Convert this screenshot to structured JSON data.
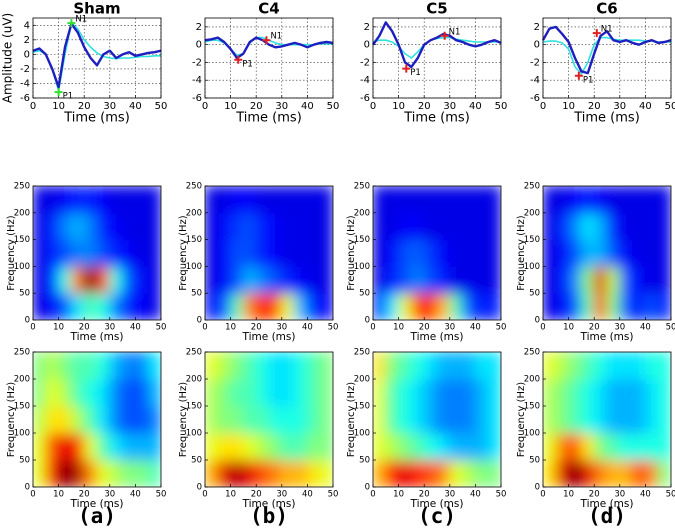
{
  "panel_labels": [
    "(a)",
    "(b)",
    "(c)",
    "(d)"
  ],
  "chart_data": [
    {
      "type": "line",
      "title": "Sham",
      "xlabel": "Time (ms)",
      "ylabel": "Amplitude (uV)",
      "grid": true,
      "x": [
        0,
        2.5,
        5,
        7.5,
        10,
        12.5,
        15,
        17.5,
        20,
        22.5,
        25,
        27.5,
        30,
        32.5,
        35,
        37.5,
        40,
        42.5,
        45,
        47.5,
        50
      ],
      "series": [
        {
          "color": "#1f1fc0",
          "values": [
            0.5,
            0.8,
            0,
            -2,
            -4.5,
            1,
            4.2,
            3,
            1,
            -0.5,
            -1.5,
            0,
            0.5,
            -0.5,
            0,
            0.3,
            -0.2,
            0,
            0.2,
            0.3,
            0.5
          ]
        },
        {
          "color": "#33e0e0",
          "values": [
            0.3,
            0.5,
            0,
            -2,
            -5,
            0,
            4.3,
            3.5,
            2,
            1,
            0.2,
            -0.3,
            -0.5,
            -0.6,
            -0.5,
            -0.5,
            -0.4,
            -0.3,
            -0.3,
            -0.2,
            -0.2
          ]
        }
      ],
      "annotations": [
        {
          "text": "N1",
          "x": 15,
          "y": 4.3,
          "color": "#30e030"
        },
        {
          "text": "P1",
          "x": 10,
          "y": -5.2,
          "color": "#30e030"
        }
      ],
      "xlim": [
        0,
        50
      ],
      "xticks": [
        0,
        10,
        20,
        30,
        40,
        50
      ],
      "ylim": [
        -6,
        5
      ],
      "yticks": [
        -6,
        -4,
        -2,
        0,
        2,
        4
      ]
    },
    {
      "type": "line",
      "title": "C4",
      "xlabel": "Time (ms)",
      "grid": true,
      "x": [
        0,
        2.5,
        5,
        7.5,
        10,
        12.5,
        15,
        17.5,
        20,
        22.5,
        25,
        27.5,
        30,
        32.5,
        35,
        37.5,
        40,
        42.5,
        45,
        47.5,
        50
      ],
      "series": [
        {
          "color": "#1f1fc0",
          "values": [
            0.5,
            0.6,
            0.8,
            0.3,
            -0.5,
            -1.5,
            -1,
            0.3,
            0.8,
            0.5,
            0,
            -0.3,
            -0.2,
            0,
            0.2,
            0,
            -0.3,
            0,
            0.2,
            0.3,
            0.2
          ]
        },
        {
          "color": "#33e0e0",
          "values": [
            0.3,
            0.5,
            0.5,
            0.2,
            -0.5,
            -1.2,
            -1,
            0.2,
            0.8,
            0.8,
            0.5,
            0.2,
            0,
            0,
            0,
            0,
            0,
            0,
            0.1,
            0.1,
            0.1
          ]
        }
      ],
      "annotations": [
        {
          "text": "N1",
          "x": 24,
          "y": 0.5,
          "color": "#e02020"
        },
        {
          "text": "P1",
          "x": 13,
          "y": -1.7,
          "color": "#e02020"
        }
      ],
      "xlim": [
        0,
        50
      ],
      "xticks": [
        0,
        10,
        20,
        30,
        40,
        50
      ],
      "ylim": [
        -6,
        3
      ],
      "yticks": [
        -6,
        -4,
        -2,
        0,
        2
      ]
    },
    {
      "type": "line",
      "title": "C5",
      "xlabel": "Time (ms)",
      "grid": true,
      "x": [
        0,
        2.5,
        5,
        7.5,
        10,
        12.5,
        15,
        17.5,
        20,
        22.5,
        25,
        27.5,
        30,
        32.5,
        35,
        37.5,
        40,
        42.5,
        45,
        47.5,
        50
      ],
      "series": [
        {
          "color": "#1f1fc0",
          "values": [
            0,
            1,
            2.5,
            1.5,
            0,
            -2,
            -2.5,
            -1.5,
            0,
            0.5,
            0.8,
            1.2,
            1,
            0.5,
            0.3,
            0,
            -0.2,
            0,
            0.3,
            0.5,
            0.2
          ]
        },
        {
          "color": "#33e0e0",
          "values": [
            0.3,
            0.5,
            0.5,
            0.3,
            -0.2,
            -1,
            -1.5,
            -0.8,
            0,
            0.5,
            0.7,
            0.8,
            0.8,
            0.6,
            0.5,
            0.4,
            0.3,
            0.3,
            0.3,
            0.3,
            0.3
          ]
        }
      ],
      "annotations": [
        {
          "text": "N1",
          "x": 28,
          "y": 1,
          "color": "#e02020"
        },
        {
          "text": "P1",
          "x": 13,
          "y": -2.7,
          "color": "#e02020"
        }
      ],
      "xlim": [
        0,
        50
      ],
      "xticks": [
        0,
        10,
        20,
        30,
        40,
        50
      ],
      "ylim": [
        -6,
        3
      ],
      "yticks": [
        -6,
        -4,
        -2,
        0,
        2
      ]
    },
    {
      "type": "line",
      "title": "C6",
      "xlabel": "Time (ms)",
      "grid": true,
      "x": [
        0,
        2.5,
        5,
        7.5,
        10,
        12.5,
        15,
        17.5,
        20,
        22.5,
        25,
        27.5,
        30,
        32.5,
        35,
        37.5,
        40,
        42.5,
        45,
        47.5,
        50
      ],
      "series": [
        {
          "color": "#1f1fc0",
          "values": [
            0.5,
            1.8,
            2,
            1.2,
            0.3,
            -1.5,
            -3,
            -3.2,
            -1,
            1,
            1.5,
            0.5,
            0.3,
            0.5,
            0.2,
            0,
            0.3,
            0.5,
            0.2,
            0.3,
            0.5
          ]
        },
        {
          "color": "#33e0e0",
          "values": [
            0.3,
            0.4,
            0.4,
            0.2,
            -0.5,
            -2.5,
            -3.3,
            -2,
            0,
            0.8,
            0.8,
            0.6,
            0.5,
            0.5,
            0.5,
            0.5,
            0.4,
            0.4,
            0.3,
            0.3,
            0.3
          ]
        }
      ],
      "annotations": [
        {
          "text": "N1",
          "x": 21,
          "y": 1.3,
          "color": "#e02020"
        },
        {
          "text": "P1",
          "x": 14,
          "y": -3.5,
          "color": "#e02020"
        }
      ],
      "xlim": [
        0,
        50
      ],
      "xticks": [
        0,
        10,
        20,
        30,
        40,
        50
      ],
      "ylim": [
        -6,
        3
      ],
      "yticks": [
        -6,
        -4,
        -2,
        0,
        2
      ]
    },
    {
      "type": "heatmap",
      "xlabel": "Time (ms)",
      "ylabel": "Frequency (Hz)",
      "xlim": [
        0,
        50
      ],
      "xticks": [
        0,
        10,
        20,
        30,
        40,
        50
      ],
      "ylim": [
        0,
        250
      ],
      "yticks": [
        0,
        50,
        100,
        150,
        200,
        250
      ],
      "values": [
        [
          0.1,
          0.12,
          0.2,
          0.35,
          0.45,
          0.4,
          0.25,
          0.15,
          0.12,
          0.1
        ],
        [
          0.1,
          0.15,
          0.4,
          0.75,
          1,
          0.8,
          0.4,
          0.2,
          0.12,
          0.1
        ],
        [
          0.1,
          0.15,
          0.2,
          0.25,
          0.25,
          0.2,
          0.15,
          0.12,
          0.1,
          0.1
        ],
        [
          0.1,
          0.15,
          0.25,
          0.3,
          0.25,
          0.15,
          0.12,
          0.1,
          0.1,
          0.1
        ],
        [
          0.1,
          0.1,
          0.12,
          0.15,
          0.15,
          0.12,
          0.1,
          0.1,
          0.1,
          0.1
        ]
      ]
    },
    {
      "type": "heatmap",
      "xlabel": "Time (ms)",
      "ylabel": "Frequency (Hz)",
      "xlim": [
        0,
        50
      ],
      "xticks": [
        0,
        10,
        20,
        30,
        40,
        50
      ],
      "ylim": [
        0,
        250
      ],
      "yticks": [
        0,
        50,
        100,
        150,
        200,
        250
      ],
      "values": [
        [
          0.12,
          0.2,
          0.45,
          0.75,
          0.85,
          0.8,
          0.6,
          0.3,
          0.15,
          0.12
        ],
        [
          0.1,
          0.12,
          0.2,
          0.3,
          0.25,
          0.2,
          0.15,
          0.12,
          0.1,
          0.1
        ],
        [
          0.1,
          0.12,
          0.2,
          0.2,
          0.15,
          0.12,
          0.1,
          0.1,
          0.1,
          0.1
        ],
        [
          0.1,
          0.12,
          0.18,
          0.2,
          0.15,
          0.12,
          0.1,
          0.1,
          0.1,
          0.1
        ],
        [
          0.1,
          0.1,
          0.12,
          0.12,
          0.1,
          0.1,
          0.1,
          0.1,
          0.1,
          0.1
        ]
      ]
    },
    {
      "type": "heatmap",
      "xlabel": "Time (ms)",
      "ylabel": "Frequency (Hz)",
      "xlim": [
        0,
        50
      ],
      "xticks": [
        0,
        10,
        20,
        30,
        40,
        50
      ],
      "ylim": [
        0,
        250
      ],
      "yticks": [
        0,
        50,
        100,
        150,
        200,
        250
      ],
      "values": [
        [
          0.15,
          0.35,
          0.6,
          0.8,
          0.85,
          0.7,
          0.45,
          0.2,
          0.15,
          0.15
        ],
        [
          0.1,
          0.15,
          0.2,
          0.25,
          0.2,
          0.15,
          0.1,
          0.1,
          0.1,
          0.1
        ],
        [
          0.1,
          0.12,
          0.2,
          0.22,
          0.18,
          0.12,
          0.1,
          0.1,
          0.1,
          0.1
        ],
        [
          0.1,
          0.1,
          0.12,
          0.12,
          0.1,
          0.1,
          0.1,
          0.1,
          0.1,
          0.1
        ],
        [
          0.1,
          0.1,
          0.1,
          0.1,
          0.1,
          0.1,
          0.1,
          0.1,
          0.1,
          0.1
        ]
      ]
    },
    {
      "type": "heatmap",
      "xlabel": "Time (ms)",
      "ylabel": "Frequency (Hz)",
      "xlim": [
        0,
        50
      ],
      "xticks": [
        0,
        10,
        20,
        30,
        40,
        50
      ],
      "ylim": [
        0,
        250
      ],
      "yticks": [
        0,
        50,
        100,
        150,
        200,
        250
      ],
      "values": [
        [
          0.1,
          0.12,
          0.2,
          0.45,
          0.8,
          0.5,
          0.2,
          0.15,
          0.2,
          0.15
        ],
        [
          0.1,
          0.12,
          0.25,
          0.5,
          0.9,
          0.55,
          0.2,
          0.12,
          0.1,
          0.1
        ],
        [
          0.1,
          0.12,
          0.2,
          0.3,
          0.3,
          0.2,
          0.12,
          0.1,
          0.1,
          0.1
        ],
        [
          0.1,
          0.15,
          0.25,
          0.35,
          0.3,
          0.15,
          0.1,
          0.1,
          0.1,
          0.1
        ],
        [
          0.1,
          0.1,
          0.12,
          0.15,
          0.12,
          0.1,
          0.1,
          0.1,
          0.1,
          0.1
        ]
      ]
    },
    {
      "type": "heatmap",
      "xlabel": "Time (ms)",
      "ylabel": "Frequency (Hz)",
      "xlim": [
        0,
        50
      ],
      "xticks": [
        0,
        10,
        20,
        30,
        40,
        50
      ],
      "ylim": [
        0,
        250
      ],
      "yticks": [
        0,
        50,
        100,
        150,
        200,
        250
      ],
      "values": [
        [
          0.6,
          0.85,
          1,
          0.95,
          0.75,
          0.6,
          0.55,
          0.5,
          0.5,
          0.45
        ],
        [
          0.6,
          0.8,
          0.9,
          0.85,
          0.6,
          0.45,
          0.35,
          0.3,
          0.3,
          0.3
        ],
        [
          0.55,
          0.65,
          0.65,
          0.55,
          0.45,
          0.35,
          0.25,
          0.2,
          0.2,
          0.25
        ],
        [
          0.5,
          0.6,
          0.55,
          0.45,
          0.4,
          0.35,
          0.25,
          0.2,
          0.2,
          0.3
        ],
        [
          0.5,
          0.55,
          0.5,
          0.45,
          0.45,
          0.4,
          0.3,
          0.25,
          0.25,
          0.35
        ]
      ]
    },
    {
      "type": "heatmap",
      "xlabel": "Time (ms)",
      "ylabel": "Frequency (Hz)",
      "xlim": [
        0,
        50
      ],
      "xticks": [
        0,
        10,
        20,
        30,
        40,
        50
      ],
      "ylim": [
        0,
        250
      ],
      "yticks": [
        0,
        50,
        100,
        150,
        200,
        250
      ],
      "values": [
        [
          0.7,
          0.9,
          0.95,
          0.9,
          0.8,
          0.75,
          0.7,
          0.7,
          0.65,
          0.6
        ],
        [
          0.6,
          0.65,
          0.65,
          0.6,
          0.55,
          0.5,
          0.45,
          0.45,
          0.5,
          0.5
        ],
        [
          0.55,
          0.5,
          0.5,
          0.45,
          0.45,
          0.4,
          0.4,
          0.4,
          0.45,
          0.5
        ],
        [
          0.55,
          0.5,
          0.45,
          0.45,
          0.4,
          0.35,
          0.35,
          0.4,
          0.45,
          0.5
        ],
        [
          0.6,
          0.55,
          0.5,
          0.45,
          0.4,
          0.35,
          0.35,
          0.4,
          0.45,
          0.5
        ]
      ]
    },
    {
      "type": "heatmap",
      "xlabel": "Time (ms)",
      "ylabel": "Frequency (Hz)",
      "xlim": [
        0,
        50
      ],
      "xticks": [
        0,
        10,
        20,
        30,
        40,
        50
      ],
      "ylim": [
        0,
        250
      ],
      "yticks": [
        0,
        50,
        100,
        150,
        200,
        250
      ],
      "values": [
        [
          0.7,
          0.85,
          0.9,
          0.85,
          0.8,
          0.75,
          0.6,
          0.55,
          0.5,
          0.5
        ],
        [
          0.6,
          0.55,
          0.5,
          0.45,
          0.4,
          0.35,
          0.3,
          0.3,
          0.3,
          0.35
        ],
        [
          0.6,
          0.45,
          0.4,
          0.35,
          0.3,
          0.25,
          0.25,
          0.25,
          0.3,
          0.35
        ],
        [
          0.6,
          0.45,
          0.4,
          0.35,
          0.3,
          0.25,
          0.25,
          0.25,
          0.3,
          0.35
        ],
        [
          0.65,
          0.5,
          0.45,
          0.4,
          0.35,
          0.3,
          0.3,
          0.3,
          0.35,
          0.35
        ]
      ]
    },
    {
      "type": "heatmap",
      "xlabel": "Time (ms)",
      "ylabel": "Frequency (Hz)",
      "xlim": [
        0,
        50
      ],
      "xticks": [
        0,
        10,
        20,
        30,
        40,
        50
      ],
      "ylim": [
        0,
        250
      ],
      "yticks": [
        0,
        50,
        100,
        150,
        200,
        250
      ],
      "values": [
        [
          0.65,
          0.9,
          1,
          0.9,
          0.75,
          0.7,
          0.7,
          0.8,
          0.75,
          0.5
        ],
        [
          0.6,
          0.75,
          0.8,
          0.65,
          0.5,
          0.45,
          0.4,
          0.4,
          0.4,
          0.4
        ],
        [
          0.55,
          0.5,
          0.45,
          0.4,
          0.35,
          0.3,
          0.3,
          0.3,
          0.35,
          0.4
        ],
        [
          0.55,
          0.5,
          0.45,
          0.4,
          0.35,
          0.3,
          0.3,
          0.3,
          0.35,
          0.4
        ],
        [
          0.6,
          0.55,
          0.5,
          0.45,
          0.4,
          0.35,
          0.35,
          0.35,
          0.4,
          0.4
        ]
      ]
    }
  ]
}
